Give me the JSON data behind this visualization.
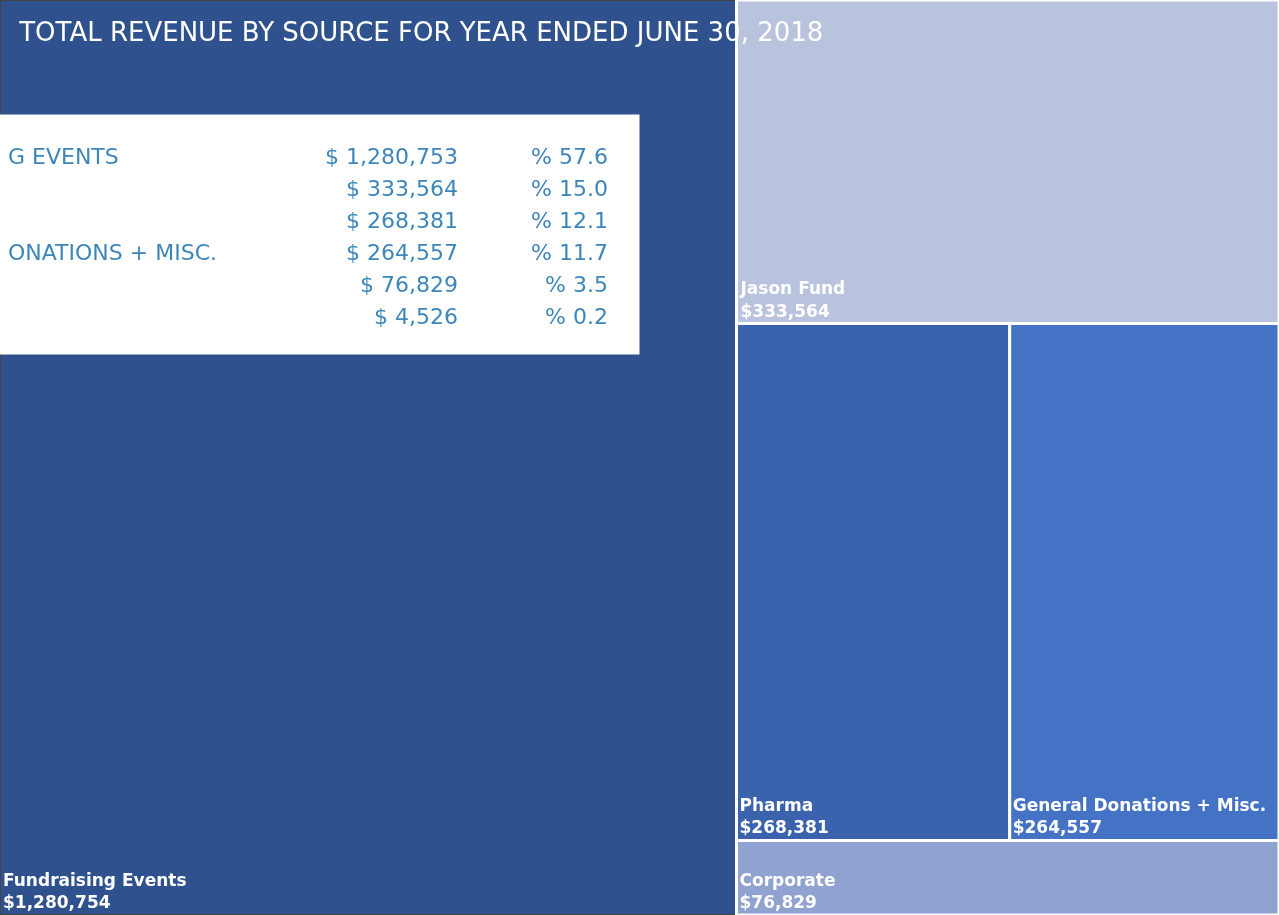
{
  "chart_data": {
    "type": "other",
    "title": "TOTAL REVENUE BY SOURCE FOR YEAR ENDED JUNE 30, 2018",
    "categories": [
      "Fundraising Events",
      "Jason Fund",
      "Pharma",
      "General Donations + Misc.",
      "Corporate"
    ],
    "values": [
      1280754,
      333564,
      268381,
      264557,
      76829
    ],
    "value_labels": [
      "$1,280,754",
      "$333,564",
      "$268,381",
      "$264,557",
      "$76,829"
    ],
    "colors": [
      "#2f528f",
      "#bac3de",
      "#3a62ad",
      "#4472c4",
      "#8fa2d0"
    ],
    "annotations": [
      "G EVENTS  $ 1,280,753  % 57.6",
      "$ 333,564  % 15.0",
      "$ 268,381  % 12.1",
      "ONATIONS + MISC.  $ 264,557  % 11.7",
      "$ 76,829  % 3.5",
      "$ 4,526  % 0.2"
    ]
  }
}
